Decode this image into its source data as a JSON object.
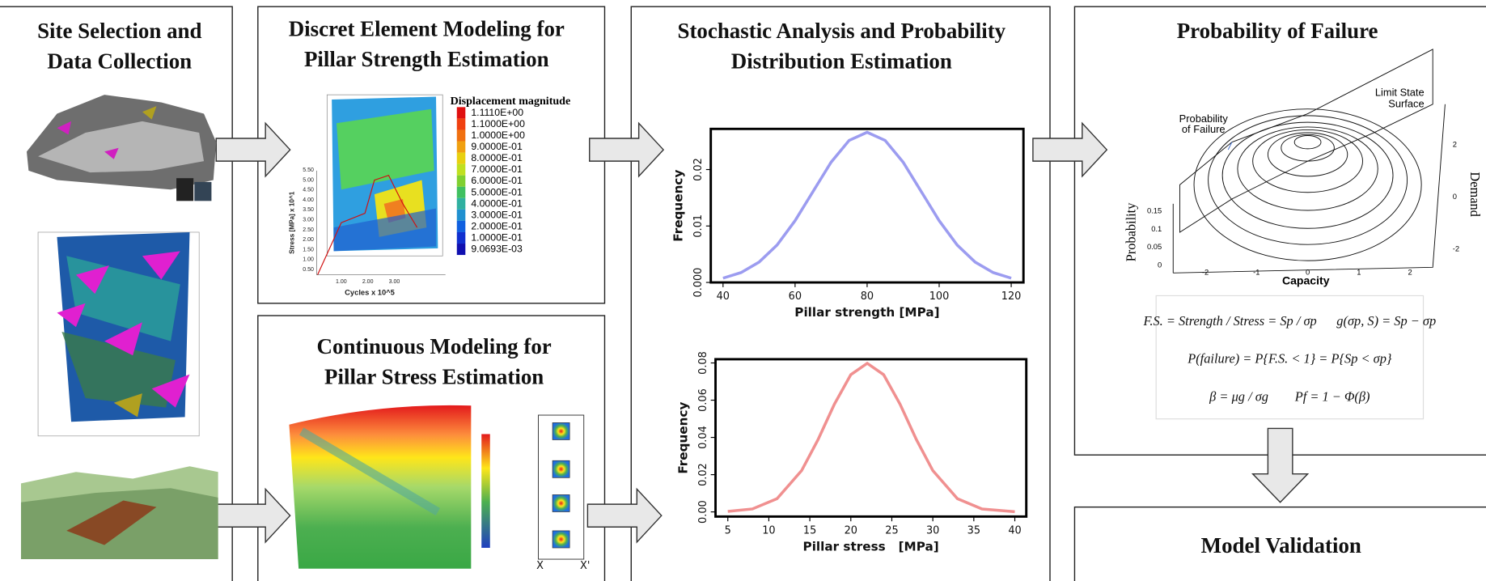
{
  "panels": {
    "site": {
      "title": [
        "Site Selection and",
        "Data Collection"
      ]
    },
    "dem": {
      "title": [
        "Discret Element Modeling for",
        "Pillar Strength Estimation"
      ],
      "legend_title": "Displacement magnitude",
      "legend_labels": [
        "1.1110E+00",
        "1.1000E+00",
        "1.0000E+00",
        "9.0000E-01",
        "8.0000E-01",
        "7.0000E-01",
        "6.0000E-01",
        "5.0000E-01",
        "4.0000E-01",
        "3.0000E-01",
        "2.0000E-01",
        "1.0000E-01",
        "9.0693E-03"
      ],
      "y_axis_label": "Stress [MPa] x 10^1",
      "x_axis_label": "Cycles x 10^5",
      "y_tick_labels": [
        "0.50",
        "1.00",
        "1.50",
        "2.00",
        "2.50",
        "3.00",
        "3.50",
        "4.00",
        "4.50",
        "5.00",
        "5.50"
      ],
      "x_tick_labels": [
        "1.00",
        "2.00",
        "3.00"
      ]
    },
    "continuous": {
      "title": [
        "Continuous Modeling for",
        "Pillar Stress Estimation"
      ],
      "section_labels": [
        "X",
        "X'"
      ]
    },
    "stochastic": {
      "title": [
        "Stochastic Analysis and Probability",
        "Distribution Estimation"
      ]
    },
    "failure": {
      "title": "Probability of Failure",
      "surface_label": [
        "Limit State",
        "Surface"
      ],
      "region_label": [
        "Probability",
        "of Failure"
      ],
      "x_axis_label": "Capacity",
      "y_axis_label": "Probability",
      "z_axis_label": "Demand",
      "x_tick_labels": [
        "-2",
        "-1",
        "0",
        "1",
        "2"
      ],
      "y_tick_labels": [
        "0.15",
        "0.1",
        "0.05",
        "0"
      ],
      "z_tick_labels": [
        "2",
        "0",
        "-2"
      ],
      "equations": [
        "F.S. = Strength / Stress = Sp / σp      g(σp, S) = Sp − σp",
        "P(failure) = P{F.S. < 1} = P{Sp < σp}",
        "β = μg / σg        Pf = 1 − Φ(β)"
      ]
    },
    "validation": {
      "title": "Model Validation"
    }
  },
  "chart_data": [
    {
      "type": "line",
      "x_label": "Pillar strength [MPa]",
      "y_label": "Frequency",
      "x": [
        40,
        45,
        50,
        55,
        60,
        65,
        70,
        75,
        80,
        85,
        90,
        95,
        100,
        105,
        110,
        115,
        120
      ],
      "series": [
        {
          "color": "#9c9cf0",
          "values": [
            0.00076,
            0.00175,
            0.0036,
            0.00663,
            0.01094,
            0.01613,
            0.0213,
            0.02516,
            0.0266,
            0.02516,
            0.0213,
            0.01613,
            0.01094,
            0.00663,
            0.0036,
            0.00175,
            0.00076
          ]
        }
      ],
      "xlim": [
        36.6,
        123.4
      ],
      "xticks": [
        40,
        60,
        80,
        100,
        120
      ],
      "ylim": [
        0,
        0.0272
      ],
      "yticks": [
        {
          "value": 0,
          "label": "0.000"
        },
        0.01,
        0.02
      ]
    },
    {
      "type": "line",
      "x_label": "Pillar stress   [MPa]",
      "y_label": "Frequency",
      "x": [
        5,
        8,
        11,
        14,
        16,
        18,
        20,
        22,
        24,
        26,
        28,
        30,
        33,
        36,
        40
      ],
      "series": [
        {
          "color": "#f09090",
          "values": [
            0.00025,
            0.00158,
            0.0071,
            0.0222,
            0.0388,
            0.0579,
            0.0737,
            0.0798,
            0.0737,
            0.0579,
            0.0388,
            0.0222,
            0.0071,
            0.00158,
            0.00012
          ]
        }
      ],
      "xlim": [
        3.5,
        41.4
      ],
      "xticks": [
        5,
        10,
        15,
        20,
        25,
        30,
        35,
        40
      ],
      "ylim": [
        -0.0025,
        0.082
      ],
      "yticks": [
        {
          "value": 0,
          "label": "0.00"
        },
        0.02,
        0.04,
        0.06,
        0.08
      ]
    }
  ]
}
